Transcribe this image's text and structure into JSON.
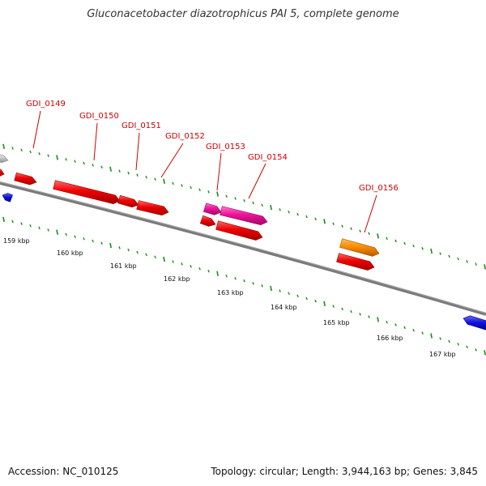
{
  "title": "Gluconacetobacter diazotrophicus PAI 5, complete genome",
  "footer": {
    "accession_label": "Accession:",
    "accession": "NC_010125",
    "summary": "Topology: circular; Length: 3,944,163 bp; Genes: 3,845"
  },
  "colors": {
    "backbone": "#7a7a7a",
    "tick": "#1a8a1a",
    "gene_red": "#ee0000",
    "gene_pink": "#ee1199",
    "gene_orange": "#ff8c00",
    "gene_blue": "#1010dd",
    "gene_gray": "#c8c8c8",
    "label": "#cc0000"
  },
  "kbp_labels": [
    "159 kbp",
    "160 kbp",
    "161 kbp",
    "162 kbp",
    "163 kbp",
    "164 kbp",
    "165 kbp",
    "166 kbp",
    "167 kbp"
  ],
  "genes": [
    {
      "id": "GDI_0149",
      "labeled": true,
      "color": "gene_red"
    },
    {
      "id": "GDI_0150",
      "labeled": true,
      "color": "gene_red"
    },
    {
      "id": "GDI_0151",
      "labeled": true,
      "color": "gene_red"
    },
    {
      "id": "GDI_0152",
      "labeled": true,
      "color": "gene_red"
    },
    {
      "id": "GDI_0153",
      "labeled": true,
      "color": "gene_pink"
    },
    {
      "id": "GDI_0154",
      "labeled": true,
      "color": "gene_pink"
    },
    {
      "id": "GDI_0156",
      "labeled": true,
      "color": "gene_orange"
    }
  ]
}
